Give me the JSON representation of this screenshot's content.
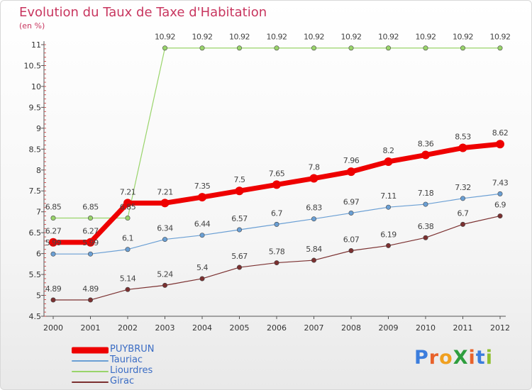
{
  "title": "Evolution du Taux de Taxe d'Habitation",
  "unit": "(en %)",
  "logo": {
    "text": "ProXiti",
    "letters": [
      "P",
      "r",
      "o",
      "X",
      "i",
      "t",
      "i"
    ],
    "colors": [
      "#3b7ddd",
      "#e8622a",
      "#f0a020",
      "#2e9e3e",
      "#e8622a",
      "#3b7ddd",
      "#8fbf2f"
    ]
  },
  "chart_data": {
    "type": "line",
    "x": [
      "2000",
      "2001",
      "2002",
      "2003",
      "2004",
      "2005",
      "2006",
      "2007",
      "2008",
      "2009",
      "2010",
      "2011",
      "2012"
    ],
    "ylim": [
      4.5,
      11
    ],
    "y_ticks": [
      "4.5",
      "5",
      "5.5",
      "6",
      "6.5",
      "7",
      "7.5",
      "8",
      "8.5",
      "9",
      "9.5",
      "10",
      "10.5",
      "11"
    ],
    "grid": false,
    "legend_position": "bottom-left",
    "series": [
      {
        "name": "PUYBRUN",
        "color": "#ee0000",
        "width": 7,
        "values": [
          6.27,
          6.27,
          7.21,
          7.21,
          7.35,
          7.5,
          7.65,
          7.8,
          7.96,
          8.2,
          8.36,
          8.53,
          8.62
        ],
        "labels": [
          "6.27",
          "6.27",
          "7.21",
          "7.21",
          "7.35",
          "7.5",
          "7.65",
          "7.8",
          "7.96",
          "8.2",
          "8.36",
          "8.53",
          "8.62"
        ]
      },
      {
        "name": "Tauriac",
        "color": "#6a9fd4",
        "width": 1.2,
        "values": [
          5.99,
          5.99,
          6.1,
          6.34,
          6.44,
          6.57,
          6.7,
          6.83,
          6.97,
          7.11,
          7.18,
          7.32,
          7.43
        ],
        "labels": [
          "5.99",
          "5.99",
          "6.1",
          "6.34",
          "6.44",
          "6.57",
          "6.7",
          "6.83",
          "6.97",
          "7.11",
          "7.18",
          "7.32",
          "7.43"
        ]
      },
      {
        "name": "Liourdres",
        "color": "#99d46a",
        "width": 1.2,
        "values": [
          6.85,
          6.85,
          6.85,
          10.92,
          10.92,
          10.92,
          10.92,
          10.92,
          10.92,
          10.92,
          10.92,
          10.92,
          10.92
        ],
        "labels": [
          "6.85",
          "6.85",
          "6.85",
          "10.92",
          "10.92",
          "10.92",
          "10.92",
          "10.92",
          "10.92",
          "10.92",
          "10.92",
          "10.92",
          "10.92"
        ]
      },
      {
        "name": "Girac",
        "color": "#7b3030",
        "width": 1.2,
        "values": [
          4.89,
          4.89,
          5.14,
          5.24,
          5.4,
          5.67,
          5.78,
          5.84,
          6.07,
          6.19,
          6.38,
          6.7,
          6.9
        ],
        "labels": [
          "4.89",
          "4.89",
          "5.14",
          "5.24",
          "5.4",
          "5.67",
          "5.78",
          "5.84",
          "6.07",
          "6.19",
          "6.38",
          "6.7",
          "6.9"
        ]
      }
    ]
  }
}
